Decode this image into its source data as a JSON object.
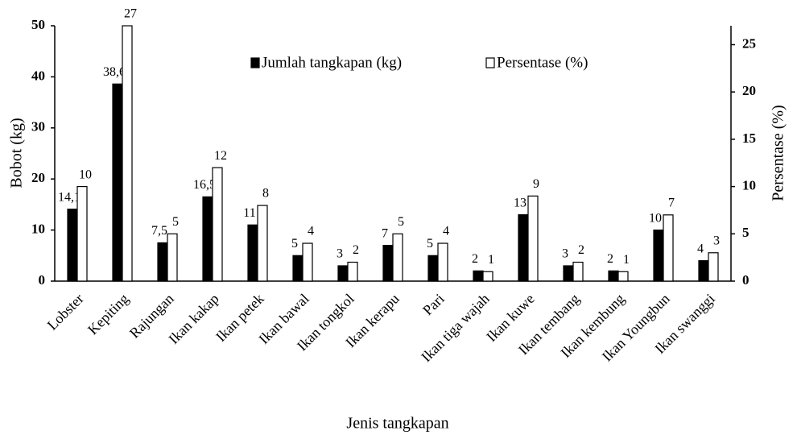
{
  "chart_data": {
    "type": "bar",
    "x_label": "Jenis tangkapan",
    "y_label": "Bobot (kg)",
    "y2_label": "Persentase (%)",
    "categories": [
      "Lobster",
      "Kepiting",
      "Rajungan",
      "Ikan kakap",
      "Ikan petek",
      "Ikan bawal",
      "Ikan tongkol",
      "Ikan kerapu",
      "Pari",
      "Ikan tiga wajah",
      "Ikan kuwe",
      "Ikan tembang",
      "Ikan kembung",
      "Ikan Youngbun",
      "Ikan swanggi"
    ],
    "series": [
      {
        "name": "Jumlah tangkapan (kg)",
        "color": "#000000",
        "axis": "y",
        "values": [
          14.1,
          38.6,
          7.5,
          16.5,
          11,
          5,
          3,
          7,
          5,
          2,
          13,
          3,
          2,
          10,
          4
        ],
        "value_labels": [
          "14,1",
          "38,6",
          "7,5",
          "16,5",
          "11",
          "5",
          "3",
          "7",
          "5",
          "2",
          "13",
          "3",
          "2",
          "10",
          "4"
        ]
      },
      {
        "name": "Persentase (%)",
        "color": "#ffffff",
        "axis": "y2",
        "values": [
          10,
          27,
          5,
          12,
          8,
          4,
          2,
          5,
          4,
          1,
          9,
          2,
          1,
          7,
          3
        ]
      }
    ],
    "ylim": [
      0,
      50
    ],
    "yticks": [
      0,
      10,
      20,
      30,
      40,
      50
    ],
    "y2lim": [
      0,
      27
    ],
    "y2ticks": [
      0,
      5,
      10,
      15,
      20,
      25
    ],
    "legend": "top"
  }
}
